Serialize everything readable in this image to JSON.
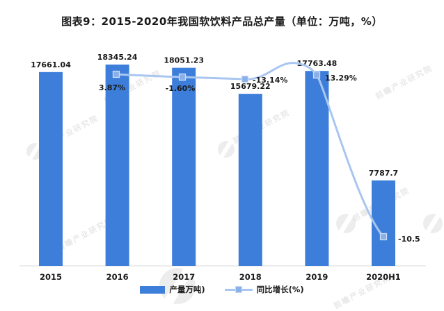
{
  "title": "图表9：2015-2020年我国软饮料产品总产量（单位：万吨，%）",
  "watermark": {
    "brand_text": "前瞻产业研究院"
  },
  "legend": {
    "items": [
      {
        "label": "产量万吨)",
        "swatch": "bar"
      },
      {
        "label": "同比增长(%)",
        "swatch": "line-marker"
      }
    ]
  },
  "chart_data": {
    "type": "bar",
    "combo": "bar + smooth line with square markers",
    "title": "图表9：2015-2020年我国软饮料产品总产量（单位：万吨，%）",
    "unit_note": "单位：万吨，%",
    "categories": [
      "2015",
      "2016",
      "2017",
      "2018",
      "2019",
      "2020H1"
    ],
    "series": [
      {
        "name": "产量万吨)",
        "type": "bar",
        "color": "#3d7edb",
        "values": [
          17661.04,
          18345.24,
          18051.23,
          15679.22,
          17763.48,
          7787.7
        ],
        "data_labels": [
          "17661.04",
          "18345.24",
          "18051.23",
          "15679.22",
          "17763.48",
          "7787.7"
        ]
      },
      {
        "name": "同比增长(%)",
        "type": "line",
        "color": "#a9c6ef",
        "marker_color": "#8ab0e8",
        "marker_border_color": "#cdddf5",
        "values": [
          null,
          3.87,
          -1.6,
          -13.14,
          13.29,
          -10.5
        ],
        "data_labels": [
          "",
          "3.87%",
          "-1.60%",
          "-13.14%",
          "13.29%",
          "-10.5"
        ]
      }
    ],
    "axes": {
      "x_axis_line_color": "#d9d9d9",
      "y_axis_visible": false,
      "gridlines": false,
      "bar_value_range_implied": [
        0,
        18345.24
      ]
    },
    "legend_position": "bottom",
    "text_color": "#1a1a1a",
    "background": "#ffffff"
  }
}
